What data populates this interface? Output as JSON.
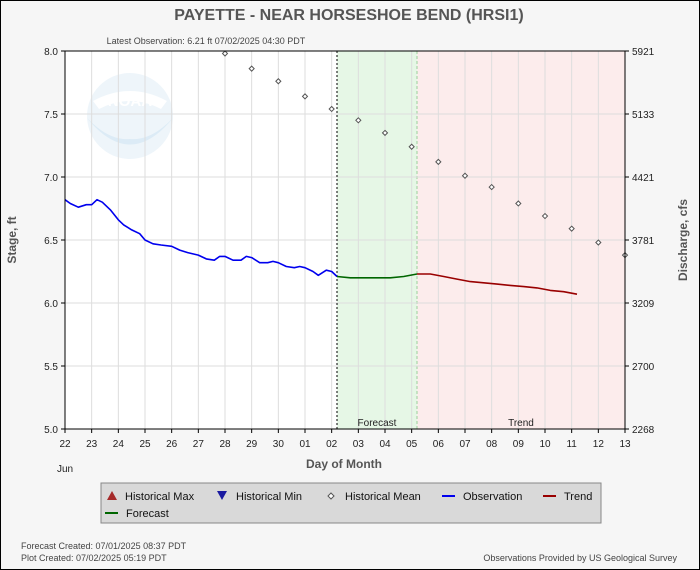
{
  "chart_data": {
    "type": "line",
    "title": "PAYETTE - NEAR HORSESHOE BEND  (HRSI1)",
    "subtitle": "Latest Observation: 6.21 ft 07/02/2025 04:30 PDT",
    "xlabel": "Day of Month",
    "ylabel": "Stage, ft",
    "ylabel_right": "Discharge, cfs",
    "month_label": "Jun",
    "x_range": [
      22,
      43
    ],
    "ylim": [
      5.0,
      8.0
    ],
    "x_tick_values": [
      22,
      23,
      24,
      25,
      26,
      27,
      28,
      29,
      30,
      31,
      32,
      33,
      34,
      35,
      36,
      37,
      38,
      39,
      40,
      41,
      42,
      43
    ],
    "x_tick_labels": [
      "22",
      "23",
      "24",
      "25",
      "26",
      "27",
      "28",
      "29",
      "30",
      "01",
      "02",
      "03",
      "04",
      "05",
      "06",
      "07",
      "08",
      "09",
      "10",
      "11",
      "12",
      "13"
    ],
    "y_tick_values": [
      5.0,
      5.5,
      6.0,
      6.5,
      7.0,
      7.5,
      8.0
    ],
    "y_tick_labels": [
      "5.0",
      "5.5",
      "6.0",
      "6.5",
      "7.0",
      "7.5",
      "8.0"
    ],
    "y2_tick_labels": [
      "2268",
      "2700",
      "3209",
      "3781",
      "4421",
      "5133",
      "5921"
    ],
    "grid": true,
    "now_x": 32.2,
    "forecast_zone": [
      32.2,
      35.2
    ],
    "trend_zone": [
      35.2,
      43
    ],
    "zone_labels": {
      "forecast": "Forecast",
      "trend": "Trend"
    },
    "zone_label_x": {
      "forecast": 33.7,
      "trend": 39.1
    },
    "colors": {
      "observation": "#0000ee",
      "forecast": "#006600",
      "trend": "#990000",
      "mean_marker": "#555555",
      "forecast_zone": "#e6f7e6",
      "trend_zone": "#fcecec",
      "max_marker": "#a52a2a",
      "min_marker": "#1a1aa0"
    },
    "series": [
      {
        "name": "Observation",
        "points": [
          [
            22.0,
            6.82
          ],
          [
            22.2,
            6.79
          ],
          [
            22.5,
            6.76
          ],
          [
            22.8,
            6.78
          ],
          [
            23.0,
            6.78
          ],
          [
            23.2,
            6.82
          ],
          [
            23.4,
            6.8
          ],
          [
            23.7,
            6.74
          ],
          [
            24.0,
            6.66
          ],
          [
            24.2,
            6.62
          ],
          [
            24.5,
            6.58
          ],
          [
            24.8,
            6.55
          ],
          [
            25.0,
            6.5
          ],
          [
            25.3,
            6.47
          ],
          [
            25.6,
            6.46
          ],
          [
            26.0,
            6.45
          ],
          [
            26.3,
            6.42
          ],
          [
            26.6,
            6.4
          ],
          [
            27.0,
            6.38
          ],
          [
            27.3,
            6.35
          ],
          [
            27.6,
            6.34
          ],
          [
            27.8,
            6.37
          ],
          [
            28.0,
            6.37
          ],
          [
            28.3,
            6.34
          ],
          [
            28.6,
            6.34
          ],
          [
            28.8,
            6.37
          ],
          [
            29.0,
            6.36
          ],
          [
            29.3,
            6.32
          ],
          [
            29.6,
            6.32
          ],
          [
            29.8,
            6.33
          ],
          [
            30.0,
            6.32
          ],
          [
            30.3,
            6.29
          ],
          [
            30.6,
            6.28
          ],
          [
            30.8,
            6.29
          ],
          [
            31.0,
            6.28
          ],
          [
            31.3,
            6.25
          ],
          [
            31.5,
            6.22
          ],
          [
            31.8,
            6.26
          ],
          [
            32.0,
            6.25
          ],
          [
            32.2,
            6.21
          ]
        ]
      },
      {
        "name": "Forecast",
        "points": [
          [
            32.2,
            6.21
          ],
          [
            32.7,
            6.2
          ],
          [
            33.2,
            6.2
          ],
          [
            33.7,
            6.2
          ],
          [
            34.2,
            6.2
          ],
          [
            34.7,
            6.21
          ],
          [
            35.2,
            6.23
          ]
        ]
      },
      {
        "name": "Trend",
        "points": [
          [
            35.2,
            6.23
          ],
          [
            35.7,
            6.23
          ],
          [
            36.2,
            6.21
          ],
          [
            36.7,
            6.19
          ],
          [
            37.2,
            6.17
          ],
          [
            37.7,
            6.16
          ],
          [
            38.2,
            6.15
          ],
          [
            38.7,
            6.14
          ],
          [
            39.2,
            6.13
          ],
          [
            39.7,
            6.12
          ],
          [
            40.2,
            6.1
          ],
          [
            40.7,
            6.09
          ],
          [
            41.2,
            6.07
          ]
        ]
      },
      {
        "name": "Historical Mean",
        "points": [
          [
            28,
            7.98
          ],
          [
            29,
            7.86
          ],
          [
            30,
            7.76
          ],
          [
            31,
            7.64
          ],
          [
            32,
            7.54
          ],
          [
            33,
            7.45
          ],
          [
            34,
            7.35
          ],
          [
            35,
            7.24
          ],
          [
            36,
            7.12
          ],
          [
            37,
            7.01
          ],
          [
            38,
            6.92
          ],
          [
            39,
            6.79
          ],
          [
            40,
            6.69
          ],
          [
            41,
            6.59
          ],
          [
            42,
            6.48
          ],
          [
            43,
            6.38
          ]
        ]
      }
    ],
    "legend": [
      {
        "label": "Historical Max",
        "marker": "triangle-up"
      },
      {
        "label": "Historical Min",
        "marker": "triangle-down"
      },
      {
        "label": "Historical Mean",
        "marker": "diamond"
      },
      {
        "label": "Observation",
        "marker": "line-blue"
      },
      {
        "label": "Trend",
        "marker": "line-red"
      },
      {
        "label": "Forecast",
        "marker": "line-green"
      }
    ]
  },
  "footer": {
    "forecast_created": "Forecast Created: 07/01/2025 08:37 PDT",
    "plot_created": "Plot Created: 07/02/2025 05:19 PDT",
    "credit": "Observations Provided by US Geological Survey"
  },
  "logo": {
    "text": "NOAA"
  }
}
